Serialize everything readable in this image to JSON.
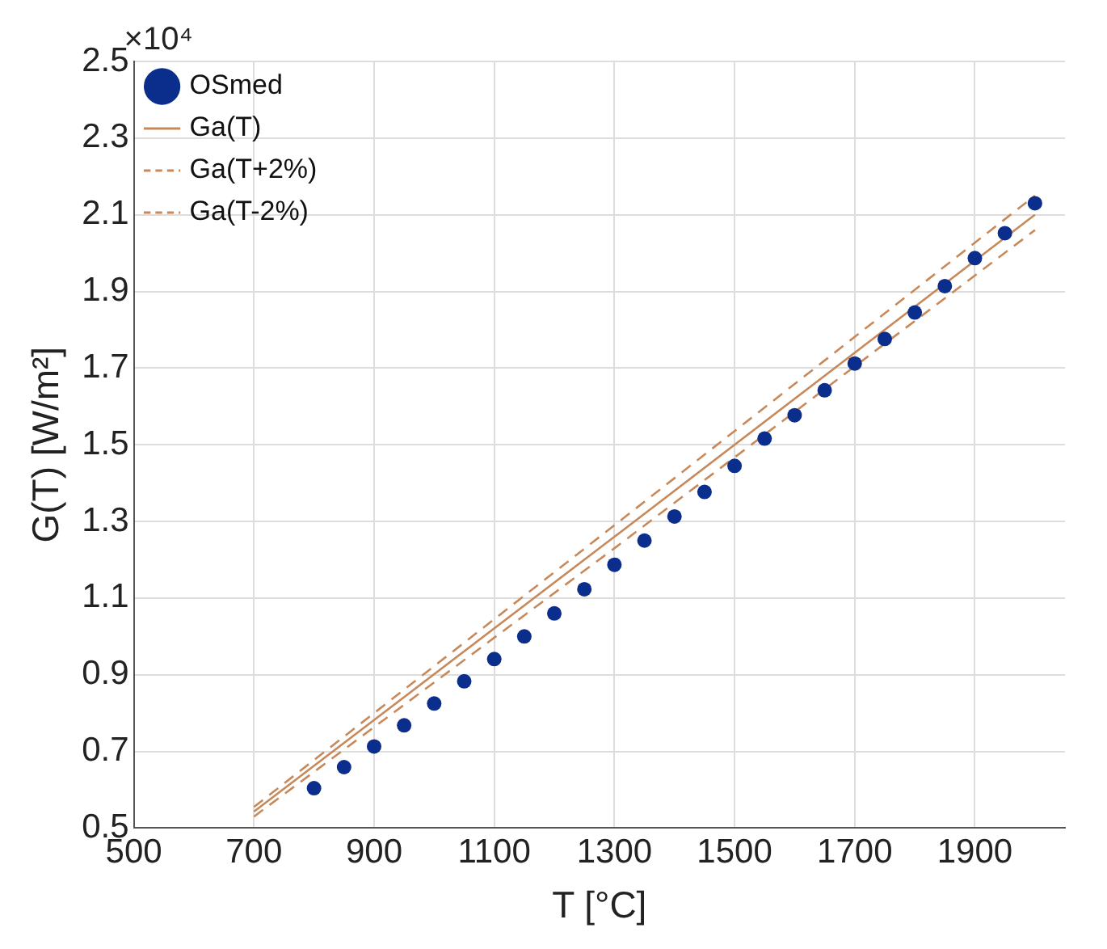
{
  "chart_data": {
    "type": "scatter",
    "xlabel": "T [°C]",
    "ylabel": "G(T) [W/m²]",
    "annotations": [
      "×10⁴"
    ],
    "xlim": [
      500,
      2050
    ],
    "xticks": [
      500,
      700,
      900,
      1100,
      1300,
      1500,
      1700,
      1900
    ],
    "ylim": [
      0.5,
      2.5
    ],
    "yticks": [
      0.5,
      0.7,
      0.9,
      1.1,
      1.3,
      1.5,
      1.7,
      1.9,
      2.1,
      2.3,
      2.5
    ],
    "grid": true,
    "legend": "top left",
    "series": [
      {
        "name": "OSmed",
        "marker": "circle",
        "color": "#0b2e8c",
        "x": [
          800,
          850,
          900,
          950,
          1000,
          1050,
          1100,
          1150,
          1200,
          1250,
          1300,
          1350,
          1400,
          1450,
          1500,
          1550,
          1600,
          1650,
          1700,
          1750,
          1800,
          1850,
          1900,
          1950,
          2000
        ],
        "values": [
          0.604,
          0.659,
          0.713,
          0.768,
          0.825,
          0.883,
          0.941,
          1.0,
          1.06,
          1.123,
          1.187,
          1.25,
          1.313,
          1.377,
          1.445,
          1.516,
          1.577,
          1.642,
          1.712,
          1.776,
          1.845,
          1.914,
          1.987,
          2.052,
          2.13
        ]
      },
      {
        "name": "Ga(T)",
        "type": "line",
        "marker": "none",
        "line_style": "solid",
        "color": "#c8895a",
        "x": [
          700,
          1300,
          2000
        ],
        "values": [
          0.543,
          1.26,
          2.1
        ]
      },
      {
        "name": "Ga(T+2%)",
        "type": "line",
        "marker": "none",
        "line_style": "dashed",
        "color": "#c8895a",
        "x": [
          700,
          1300,
          2000
        ],
        "values": [
          0.555,
          1.29,
          2.15
        ]
      },
      {
        "name": "Ga(T-2%)",
        "type": "line",
        "marker": "none",
        "line_style": "dashed",
        "color": "#c8895a",
        "x": [
          700,
          1300,
          2000
        ],
        "values": [
          0.53,
          1.23,
          2.06
        ]
      }
    ]
  }
}
